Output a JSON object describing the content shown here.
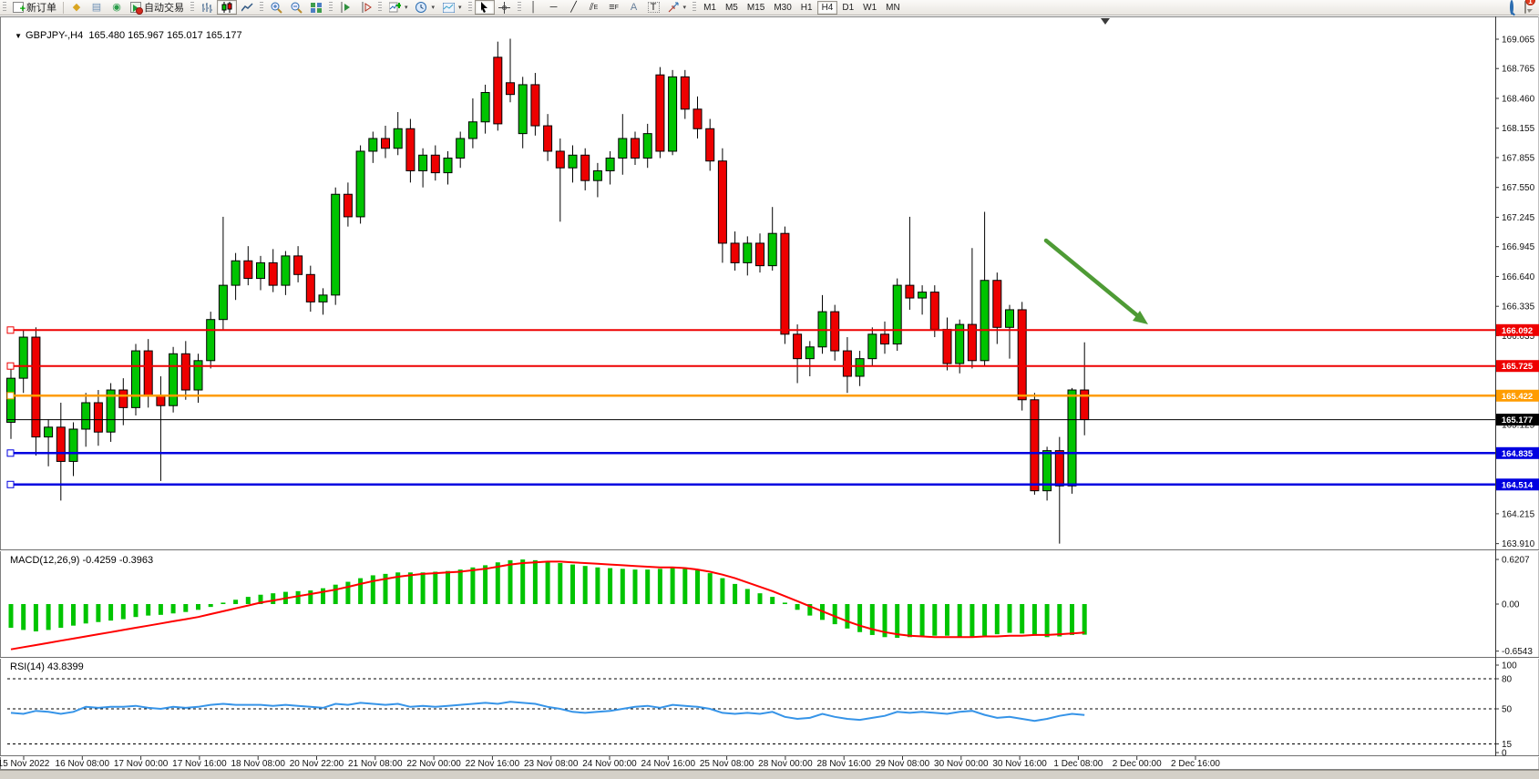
{
  "toolbar": {
    "new_order_label": "新订单",
    "autotrade_label": "自动交易",
    "caret": "▾",
    "collapse_caret": "▼",
    "tools": {
      "text_icon": "A",
      "label_icon": "T",
      "channel_sub": "E",
      "fib_sub": "F"
    },
    "timeframes": [
      "M1",
      "M5",
      "M15",
      "M30",
      "H1",
      "H4",
      "D1",
      "W1",
      "MN"
    ],
    "active_timeframe": "H4",
    "notification_count": "1"
  },
  "chart": {
    "title": "GBPJPY-,H4",
    "ohlc_text": "165.480 165.967 165.017 165.177",
    "open": 165.48,
    "high": 165.967,
    "low": 165.017,
    "close": 165.177
  },
  "macd_label": "MACD(12,26,9) -0.4259 -0.3963",
  "rsi_label": "RSI(14) 43.8399",
  "price_axis": {
    "ticks": [
      "169.065",
      "168.765",
      "168.460",
      "168.155",
      "167.855",
      "167.550",
      "167.245",
      "166.945",
      "166.640",
      "166.335",
      "166.035",
      "165.125",
      "164.215",
      "163.910"
    ]
  },
  "macd_axis": [
    "0.6207",
    "0.00",
    "-0.6543"
  ],
  "rsi_axis": [
    "100",
    "80",
    "50",
    "15",
    "0"
  ],
  "time_axis": [
    "15 Nov 2022",
    "16 Nov 08:00",
    "17 Nov 00:00",
    "17 Nov 16:00",
    "18 Nov 08:00",
    "20 Nov 22:00",
    "21 Nov 08:00",
    "22 Nov 00:00",
    "22 Nov 16:00",
    "23 Nov 08:00",
    "24 Nov 00:00",
    "24 Nov 16:00",
    "25 Nov 08:00",
    "28 Nov 00:00",
    "28 Nov 16:00",
    "29 Nov 08:00",
    "30 Nov 00:00",
    "30 Nov 16:00",
    "1 Dec 08:00",
    "2 Dec 00:00",
    "2 Dec 16:00"
  ],
  "price_lines": [
    {
      "value": 166.092,
      "label": "166.092",
      "color": "#ee0000",
      "width": 2,
      "anchor": true
    },
    {
      "value": 165.725,
      "label": "165.725",
      "color": "#ee0000",
      "width": 2,
      "anchor": true
    },
    {
      "value": 165.422,
      "label": "165.422",
      "color": "#ff9c00",
      "width": 2.5,
      "anchor": true
    },
    {
      "value": 165.177,
      "label": "165.177",
      "color": "#000000",
      "width": 1,
      "anchor": false
    },
    {
      "value": 164.835,
      "label": "164.835",
      "color": "#0000e0",
      "width": 2.5,
      "anchor": true
    },
    {
      "value": 164.514,
      "label": "164.514",
      "color": "#0000e0",
      "width": 2.5,
      "anchor": true
    }
  ],
  "colors": {
    "bull": "#00c400",
    "bear": "#ee0000",
    "wick": "#000000",
    "macd_bar": "#00c400",
    "macd_signal": "#ff0000",
    "rsi_line": "#3694e8",
    "arrow": "#4e9b35"
  },
  "chart_data": [
    {
      "type": "candlestick",
      "title": "GBPJPY-,H4",
      "timeframe": "H4",
      "ylim": [
        163.89,
        169.28
      ],
      "candles": [
        [
          165.15,
          165.72,
          164.98,
          165.6
        ],
        [
          165.6,
          166.1,
          165.45,
          166.02
        ],
        [
          166.02,
          166.12,
          164.81,
          165.0
        ],
        [
          165.0,
          165.18,
          164.7,
          165.1
        ],
        [
          165.1,
          165.35,
          164.35,
          164.75
        ],
        [
          164.75,
          165.15,
          164.6,
          165.08
        ],
        [
          165.08,
          165.45,
          164.9,
          165.35
        ],
        [
          165.35,
          165.48,
          164.91,
          165.05
        ],
        [
          165.05,
          165.55,
          164.95,
          165.48
        ],
        [
          165.48,
          165.6,
          165.12,
          165.3
        ],
        [
          165.3,
          165.95,
          165.22,
          165.88
        ],
        [
          165.88,
          166.0,
          165.3,
          165.42
        ],
        [
          165.42,
          165.62,
          164.55,
          165.32
        ],
        [
          165.32,
          165.92,
          165.25,
          165.85
        ],
        [
          165.85,
          165.98,
          165.38,
          165.48
        ],
        [
          165.48,
          165.85,
          165.35,
          165.78
        ],
        [
          165.78,
          166.28,
          165.7,
          166.2
        ],
        [
          166.2,
          167.25,
          166.1,
          166.55
        ],
        [
          166.55,
          166.88,
          166.4,
          166.8
        ],
        [
          166.8,
          166.95,
          166.55,
          166.62
        ],
        [
          166.62,
          166.85,
          166.5,
          166.78
        ],
        [
          166.78,
          166.92,
          166.48,
          166.55
        ],
        [
          166.55,
          166.9,
          166.45,
          166.85
        ],
        [
          166.85,
          166.95,
          166.58,
          166.66
        ],
        [
          166.66,
          166.75,
          166.28,
          166.38
        ],
        [
          166.38,
          166.52,
          166.25,
          166.45
        ],
        [
          166.45,
          167.55,
          166.35,
          167.48
        ],
        [
          167.48,
          167.6,
          167.15,
          167.25
        ],
        [
          167.25,
          167.98,
          167.18,
          167.92
        ],
        [
          167.92,
          168.12,
          167.8,
          168.05
        ],
        [
          168.05,
          168.18,
          167.85,
          167.95
        ],
        [
          167.95,
          168.32,
          167.88,
          168.15
        ],
        [
          168.15,
          168.25,
          167.6,
          167.72
        ],
        [
          167.72,
          167.95,
          167.55,
          167.88
        ],
        [
          167.88,
          167.98,
          167.62,
          167.7
        ],
        [
          167.7,
          167.92,
          167.58,
          167.85
        ],
        [
          167.85,
          168.12,
          167.75,
          168.05
        ],
        [
          168.05,
          168.46,
          167.95,
          168.22
        ],
        [
          168.22,
          168.6,
          168.1,
          168.52
        ],
        [
          168.88,
          169.04,
          168.13,
          168.2
        ],
        [
          168.62,
          169.07,
          168.42,
          168.5
        ],
        [
          168.1,
          168.68,
          167.95,
          168.6
        ],
        [
          168.6,
          168.72,
          168.08,
          168.18
        ],
        [
          168.18,
          168.3,
          167.82,
          167.92
        ],
        [
          167.92,
          168.05,
          167.2,
          167.75
        ],
        [
          167.75,
          167.98,
          167.6,
          167.88
        ],
        [
          167.88,
          167.95,
          167.52,
          167.62
        ],
        [
          167.62,
          167.8,
          167.45,
          167.72
        ],
        [
          167.72,
          167.92,
          167.58,
          167.85
        ],
        [
          167.85,
          168.3,
          167.68,
          168.05
        ],
        [
          168.05,
          168.12,
          167.78,
          167.85
        ],
        [
          167.85,
          168.2,
          167.75,
          168.1
        ],
        [
          168.7,
          168.78,
          167.85,
          167.92
        ],
        [
          167.92,
          168.75,
          167.88,
          168.68
        ],
        [
          168.68,
          168.75,
          168.25,
          168.35
        ],
        [
          168.35,
          168.48,
          168.05,
          168.15
        ],
        [
          168.15,
          168.25,
          167.72,
          167.82
        ],
        [
          167.82,
          167.95,
          166.78,
          166.98
        ],
        [
          166.98,
          167.1,
          166.7,
          166.78
        ],
        [
          166.78,
          167.05,
          166.65,
          166.98
        ],
        [
          166.98,
          167.08,
          166.68,
          166.75
        ],
        [
          166.75,
          167.35,
          166.7,
          167.08
        ],
        [
          167.08,
          167.15,
          165.95,
          166.05
        ],
        [
          166.05,
          166.15,
          165.55,
          165.8
        ],
        [
          165.8,
          165.98,
          165.62,
          165.92
        ],
        [
          165.92,
          166.45,
          165.85,
          166.28
        ],
        [
          166.28,
          166.35,
          165.78,
          165.88
        ],
        [
          165.88,
          166.02,
          165.45,
          165.62
        ],
        [
          165.62,
          165.88,
          165.52,
          165.8
        ],
        [
          165.8,
          166.12,
          165.72,
          166.05
        ],
        [
          166.05,
          166.18,
          165.85,
          165.95
        ],
        [
          165.95,
          166.62,
          165.88,
          166.55
        ],
        [
          166.55,
          167.25,
          166.3,
          166.42
        ],
        [
          166.42,
          166.55,
          166.25,
          166.48
        ],
        [
          166.48,
          166.55,
          166.02,
          166.1
        ],
        [
          166.1,
          166.22,
          165.68,
          165.75
        ],
        [
          165.75,
          166.2,
          165.65,
          166.15
        ],
        [
          166.15,
          166.93,
          165.7,
          165.78
        ],
        [
          165.78,
          167.3,
          165.72,
          166.6
        ],
        [
          166.6,
          166.68,
          165.95,
          166.12
        ],
        [
          166.12,
          166.35,
          165.8,
          166.3
        ],
        [
          166.3,
          166.38,
          165.27,
          165.38
        ],
        [
          165.38,
          165.45,
          164.41,
          164.45
        ],
        [
          164.45,
          164.9,
          164.35,
          164.86
        ],
        [
          164.86,
          165.0,
          163.91,
          164.5
        ],
        [
          164.5,
          165.5,
          164.42,
          165.48
        ],
        [
          165.48,
          165.967,
          165.017,
          165.177
        ]
      ]
    },
    {
      "type": "bar",
      "name": "MACD(12,26,9)",
      "current": "-0.4259 -0.3963",
      "ylim": [
        -0.74,
        0.74
      ],
      "values": [
        -0.33,
        -0.36,
        -0.38,
        -0.36,
        -0.33,
        -0.3,
        -0.27,
        -0.25,
        -0.23,
        -0.21,
        -0.18,
        -0.16,
        -0.15,
        -0.13,
        -0.11,
        -0.08,
        -0.04,
        0.02,
        0.06,
        0.1,
        0.13,
        0.15,
        0.17,
        0.18,
        0.19,
        0.22,
        0.27,
        0.31,
        0.36,
        0.4,
        0.42,
        0.44,
        0.44,
        0.44,
        0.45,
        0.46,
        0.48,
        0.51,
        0.54,
        0.58,
        0.61,
        0.62,
        0.61,
        0.59,
        0.57,
        0.55,
        0.53,
        0.51,
        0.5,
        0.49,
        0.48,
        0.48,
        0.49,
        0.5,
        0.49,
        0.47,
        0.43,
        0.36,
        0.28,
        0.21,
        0.15,
        0.1,
        0.02,
        -0.08,
        -0.16,
        -0.22,
        -0.28,
        -0.34,
        -0.39,
        -0.43,
        -0.46,
        -0.47,
        -0.46,
        -0.45,
        -0.44,
        -0.44,
        -0.45,
        -0.46,
        -0.44,
        -0.42,
        -0.4,
        -0.41,
        -0.44,
        -0.46,
        -0.45,
        -0.43,
        -0.426
      ],
      "signal": [
        -0.63,
        -0.6,
        -0.57,
        -0.54,
        -0.51,
        -0.48,
        -0.45,
        -0.42,
        -0.39,
        -0.36,
        -0.33,
        -0.3,
        -0.27,
        -0.24,
        -0.21,
        -0.18,
        -0.14,
        -0.1,
        -0.06,
        -0.02,
        0.02,
        0.05,
        0.08,
        0.11,
        0.14,
        0.17,
        0.2,
        0.24,
        0.28,
        0.32,
        0.35,
        0.38,
        0.4,
        0.42,
        0.43,
        0.44,
        0.45,
        0.47,
        0.49,
        0.52,
        0.55,
        0.57,
        0.58,
        0.59,
        0.59,
        0.58,
        0.57,
        0.56,
        0.55,
        0.54,
        0.53,
        0.52,
        0.51,
        0.51,
        0.5,
        0.48,
        0.45,
        0.41,
        0.36,
        0.3,
        0.24,
        0.18,
        0.11,
        0.04,
        -0.03,
        -0.1,
        -0.17,
        -0.24,
        -0.3,
        -0.35,
        -0.39,
        -0.42,
        -0.44,
        -0.45,
        -0.46,
        -0.46,
        -0.46,
        -0.46,
        -0.45,
        -0.45,
        -0.44,
        -0.44,
        -0.43,
        -0.43,
        -0.42,
        -0.41,
        -0.3963
      ]
    },
    {
      "type": "line",
      "name": "RSI(14)",
      "current": 43.8399,
      "ylim": [
        0,
        100
      ],
      "levels": [
        80,
        50,
        15
      ],
      "values": [
        46,
        45,
        48,
        47,
        45,
        47,
        52,
        51,
        52,
        52,
        53,
        51,
        50,
        52,
        51,
        52,
        54,
        55,
        54,
        54,
        54,
        53,
        54,
        53,
        52,
        51,
        55,
        54,
        56,
        55,
        54,
        55,
        52,
        53,
        52,
        53,
        54,
        55,
        56,
        55,
        57,
        56,
        55,
        52,
        50,
        47,
        46,
        47,
        48,
        50,
        52,
        53,
        51,
        54,
        53,
        52,
        50,
        46,
        45,
        46,
        45,
        47,
        42,
        40,
        41,
        45,
        42,
        40,
        39,
        41,
        43,
        47,
        46,
        47,
        46,
        45,
        47,
        48,
        44,
        41,
        42,
        40,
        38,
        40,
        43,
        45,
        43.84
      ]
    }
  ]
}
